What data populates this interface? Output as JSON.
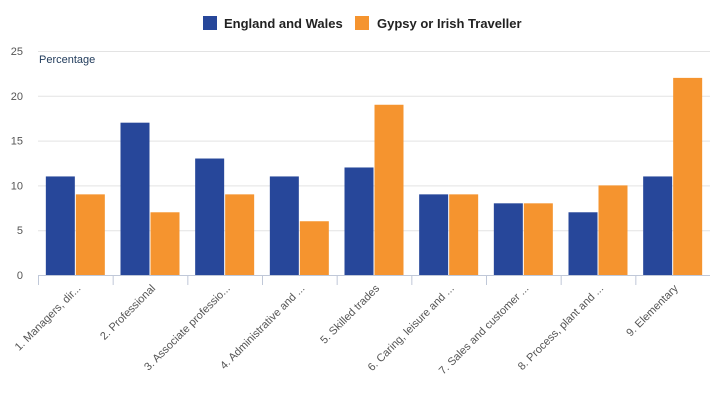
{
  "chart_data": {
    "type": "bar",
    "title": "",
    "xlabel": "",
    "ylabel": "Percentage",
    "ylim": [
      0,
      25
    ],
    "yticks": [
      0,
      5,
      10,
      15,
      20,
      25
    ],
    "grid": true,
    "legend_position": "top-center",
    "categories": [
      "1. Managers, dir...",
      "2. Professional",
      "3. Associate professio...",
      "4. Administrative and ...",
      "5. Skilled trades",
      "6. Caring, leisure and ...",
      "7. Sales and customer ...",
      "8. Process, plant and ...",
      "9. Elementary"
    ],
    "series": [
      {
        "name": "England and Wales",
        "color": "#27479a",
        "values": [
          11,
          17,
          13,
          11,
          12,
          9,
          8,
          7,
          11
        ]
      },
      {
        "name": "Gypsy or Irish Traveller",
        "color": "#f5942f",
        "values": [
          9,
          7,
          9,
          6,
          19,
          9,
          8,
          10,
          22
        ]
      }
    ]
  }
}
